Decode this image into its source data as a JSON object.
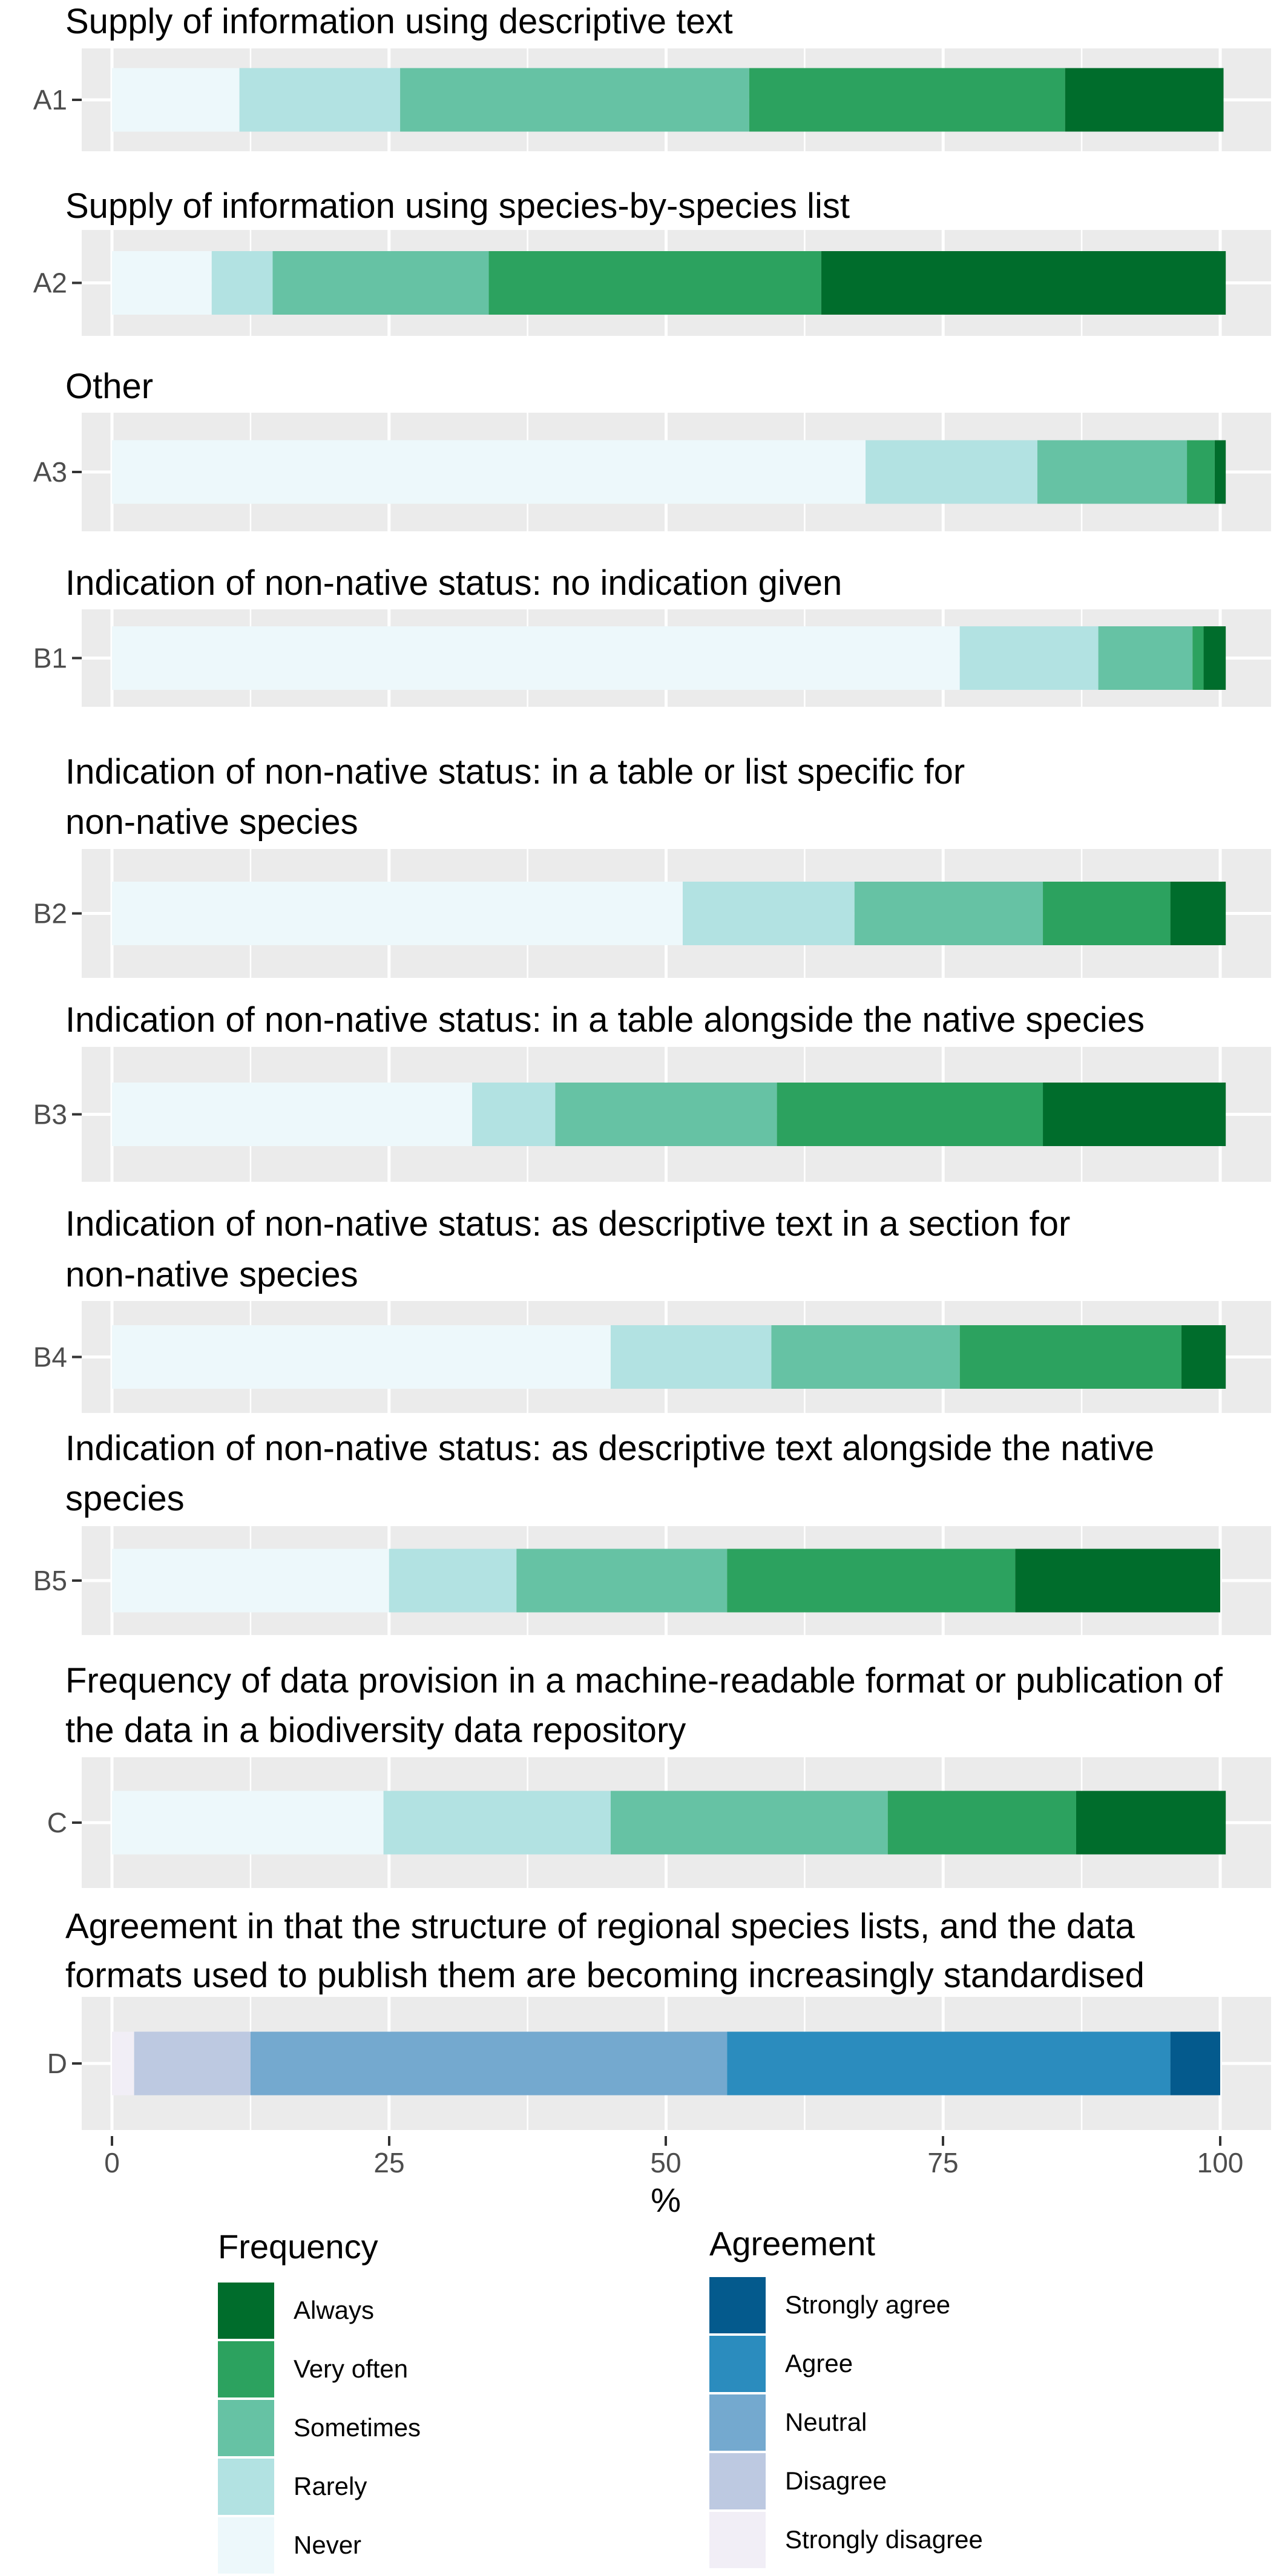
{
  "chart_data": {
    "type": "bar",
    "orientation": "horizontal",
    "stacked": true,
    "xlabel": "%",
    "xlim": [
      0,
      100
    ],
    "xticks": [
      "0",
      "25",
      "50",
      "75",
      "100"
    ],
    "grid": true,
    "panels": [
      {
        "id": "A1",
        "title": "Supply of information using descriptive text",
        "scale": "frequency",
        "values": [
          11.5,
          14.5,
          31.5,
          28.5,
          14.3
        ]
      },
      {
        "id": "A2",
        "title": "Supply of information using species-by-species list",
        "scale": "frequency",
        "values": [
          9,
          5.5,
          19.5,
          30,
          36.5
        ]
      },
      {
        "id": "A3",
        "title": "Other",
        "scale": "frequency",
        "values": [
          68,
          15.5,
          13.5,
          2.5,
          1
        ]
      },
      {
        "id": "B1",
        "title": "Indication of non-native status: no indication given",
        "scale": "frequency",
        "values": [
          76.5,
          12.5,
          8.5,
          1,
          2
        ]
      },
      {
        "id": "B2",
        "title": "Indication of non-native status: in a table or list specific for non-native species",
        "scale": "frequency",
        "values": [
          51.5,
          15.5,
          17,
          11.5,
          5
        ]
      },
      {
        "id": "B3",
        "title": "Indication of non-native status: in a table alongside the native species",
        "scale": "frequency",
        "values": [
          32.5,
          7.5,
          20,
          24,
          16.5
        ]
      },
      {
        "id": "B4",
        "title": "Indication of non-native status: as descriptive text in a section for non-native species",
        "scale": "frequency",
        "values": [
          45,
          14.5,
          17,
          20,
          4
        ]
      },
      {
        "id": "B5",
        "title": "Indication of non-native status: as descriptive text alongside the native species",
        "scale": "frequency",
        "values": [
          25,
          11.5,
          19,
          26,
          18.5
        ]
      },
      {
        "id": "C",
        "title": "Frequency of data provision in a machine-readable format or publication of the data in a biodiversity data repository",
        "scale": "frequency",
        "values": [
          24.5,
          20.5,
          25,
          17,
          13.5
        ]
      },
      {
        "id": "D",
        "title": "Agreement in that the structure of regional species lists, and the data formats used to publish them are becoming increasingly standardised",
        "scale": "agreement",
        "values": [
          2,
          10.5,
          43,
          40,
          4.5
        ]
      }
    ],
    "legends": {
      "frequency": {
        "title": "Frequency",
        "categories": [
          "Never",
          "Rarely",
          "Sometimes",
          "Very often",
          "Always"
        ],
        "colors": [
          "#edf8fb",
          "#b2e2e2",
          "#66c2a4",
          "#2ca25f",
          "#006d2c"
        ]
      },
      "agreement": {
        "title": "Agreement",
        "categories": [
          "Strongly disagree",
          "Disagree",
          "Neutral",
          "Agree",
          "Strongly agree"
        ],
        "colors": [
          "#f1eef6",
          "#bdc9e1",
          "#74a9cf",
          "#2b8cbe",
          "#045a8d"
        ]
      }
    },
    "panel_background": "#ebebeb",
    "grid_color": "#ffffff"
  }
}
